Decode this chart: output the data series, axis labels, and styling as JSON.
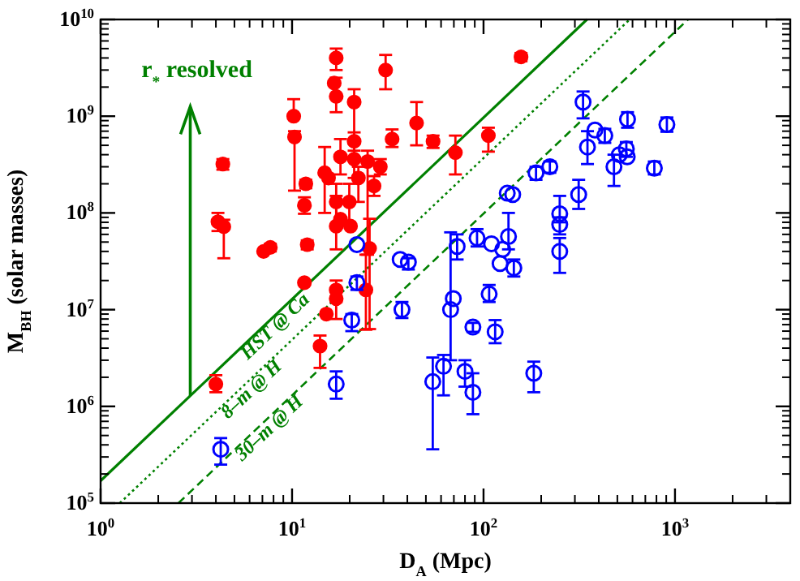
{
  "chart_data": {
    "type": "scatter",
    "xlabel": "D$_{A}$ (Mpc)",
    "ylabel": "M$_{BH}$ (solar masses)",
    "log": "xy",
    "xlim": [
      1,
      4000
    ],
    "ylim": [
      100000,
      10000000000
    ],
    "xticks": [
      {
        "value": 1,
        "label": "10$^{0}$"
      },
      {
        "value": 10,
        "label": "10$^{1}$"
      },
      {
        "value": 100,
        "label": "10$^{2}$"
      },
      {
        "value": 1000,
        "label": "10$^{3}$"
      }
    ],
    "yticks": [
      {
        "value": 100000,
        "label": "10$^{5}$"
      },
      {
        "value": 1000000,
        "label": "10$^{6}$"
      },
      {
        "value": 10000000,
        "label": "10$^{7}$"
      },
      {
        "value": 100000000,
        "label": "10$^{8}$"
      },
      {
        "value": 1000000000,
        "label": "10$^{9}$"
      },
      {
        "value": 10000000000,
        "label": "10$^{10}$"
      }
    ],
    "annotations": [
      "r$_{*}$ resolved"
    ],
    "series": [
      {
        "type": "line",
        "name": "HST @ Ca",
        "color": "#008000",
        "line_style": "solid",
        "x": [
          1,
          347
        ],
        "values": [
          170000,
          10000000000
        ]
      },
      {
        "type": "line",
        "name": "8–m @ H",
        "color": "#008000",
        "line_style": "dotted",
        "x": [
          1.26,
          580
        ],
        "values": [
          100000,
          10000000000
        ]
      },
      {
        "type": "line",
        "name": "30–m @ H",
        "color": "#008000",
        "line_style": "dashed",
        "x": [
          2.55,
          1170
        ],
        "values": [
          100000,
          10000000000
        ]
      },
      {
        "marker": "circle",
        "color": "#ff0000",
        "x": [
          4.35,
          4.1,
          4.4,
          7.1,
          7.7,
          12.0,
          10.2,
          10.3,
          11.8,
          11.6,
          17.0,
          16.6,
          17.0,
          30.8,
          21.1,
          14.8,
          15.5,
          17.9,
          21.1,
          21.1,
          24.8,
          22.2,
          28.9,
          26.8,
          17.0,
          19.9,
          17.9,
          17.0,
          20.2,
          33.3,
          44.7,
          54.5,
          71.3,
          106,
          157,
          25.4,
          11.6,
          17.0,
          17.0,
          15.1,
          24.3,
          14.0,
          4.0
        ],
        "values": [
          320000000,
          81000000,
          72000000,
          40000000,
          44000000,
          47000000,
          1000000000,
          610000000,
          200000000,
          120000000,
          4000000000,
          2200000000,
          1600000000,
          3000000000,
          1400000000,
          260000000,
          230000000,
          380000000,
          550000000,
          360000000,
          340000000,
          230000000,
          300000000,
          190000000,
          130000000,
          130000000,
          86000000,
          73000000,
          73000000,
          580000000,
          850000000,
          550000000,
          420000000,
          630000000,
          4100000000,
          43000000,
          19000000,
          16000000,
          13000000,
          9000000,
          16000000,
          4200000,
          1700000
        ],
        "errors": [
          [
            280000000,
            360000000
          ],
          [
            65000000,
            100000000
          ],
          [
            34000000,
            85000000
          ],
          null,
          [
            40000000,
            48000000
          ],
          [
            42000000,
            52000000
          ],
          [
            1000000000,
            1500000000
          ],
          [
            170000000,
            700000000
          ],
          [
            180000000,
            220000000
          ],
          [
            98000000,
            145000000
          ],
          [
            3000000000,
            5000000000
          ],
          null,
          [
            1100000000,
            2500000000
          ],
          [
            1900000000,
            4300000000
          ],
          [
            230000000,
            1900000000
          ],
          [
            100000000,
            480000000
          ],
          null,
          [
            250000000,
            580000000
          ],
          [
            440000000,
            680000000
          ],
          null,
          [
            37000000,
            440000000
          ],
          [
            130000000,
            300000000
          ],
          [
            250000000,
            360000000
          ],
          [
            150000000,
            240000000
          ],
          [
            70000000,
            200000000
          ],
          [
            80000000,
            200000000
          ],
          null,
          [
            42000000,
            150000000
          ],
          null,
          [
            480000000,
            730000000
          ],
          [
            500000000,
            1400000000
          ],
          [
            470000000,
            630000000
          ],
          [
            250000000,
            630000000
          ],
          [
            430000000,
            760000000
          ],
          [
            3700000000,
            4500000000
          ],
          [
            6300000,
            87000000
          ],
          null,
          [
            12000000,
            20000000
          ],
          [
            8000000,
            13000000
          ],
          null,
          [
            6200000,
            37000000
          ],
          [
            2500000,
            5400000
          ],
          [
            1400000,
            2100000
          ]
        ]
      },
      {
        "marker": "circle",
        "color": "#0000ff",
        "x": [
          21.8,
          36.7,
          40.5,
          331,
          382,
          430,
          349,
          480,
          314,
          188,
          222,
          133,
          142,
          250,
          250,
          250,
          92.5,
          110,
          135,
          126,
          122,
          144,
          72.8,
          565,
          907,
          512,
          557,
          563,
          780,
          107,
          115,
          183,
          88,
          80,
          88,
          21.8,
          20.5,
          37.5,
          69.5,
          67.3,
          54.3,
          61.8,
          17.0,
          4.24
        ],
        "values": [
          47000000,
          33000000,
          31000000,
          1400000000,
          720000000,
          630000000,
          480000000,
          300000000,
          155000000,
          260000000,
          300000000,
          160000000,
          155000000,
          98000000,
          76000000,
          40000000,
          55000000,
          48000000,
          57000000,
          42000000,
          30000000,
          27000000,
          45000000,
          930000000,
          820000000,
          400000000,
          460000000,
          380000000,
          290000000,
          14500000,
          5900000,
          2200000,
          6600000,
          2300000,
          1400000,
          19000000,
          7800000,
          10000000,
          13000000,
          10000000,
          1800000,
          2600000,
          1700000,
          360000
        ],
        "errors": [
          null,
          null,
          [
            26000000,
            34000000
          ],
          [
            950000000,
            1800000000
          ],
          null,
          [
            530000000,
            740000000
          ],
          [
            320000000,
            700000000
          ],
          [
            190000000,
            400000000
          ],
          [
            110000000,
            220000000
          ],
          [
            220000000,
            300000000
          ],
          [
            260000000,
            340000000
          ],
          null,
          null,
          [
            80000000,
            150000000
          ],
          [
            60000000,
            90000000
          ],
          [
            24000000,
            55000000
          ],
          [
            45000000,
            68000000
          ],
          null,
          [
            42000000,
            100000000
          ],
          null,
          null,
          [
            22000000,
            33000000
          ],
          [
            33000000,
            60000000
          ],
          [
            760000000,
            1100000000
          ],
          [
            690000000,
            970000000
          ],
          null,
          [
            380000000,
            540000000
          ],
          null,
          [
            250000000,
            340000000
          ],
          [
            12000000,
            18000000
          ],
          [
            4500000,
            7800000
          ],
          [
            1400000,
            2900000
          ],
          [
            5900000,
            7300000
          ],
          [
            1600000,
            3000000
          ],
          [
            830000,
            2200000
          ],
          [
            16000000,
            22000000
          ],
          [
            6000000,
            9000000
          ],
          [
            8200000,
            12000000
          ],
          null,
          [
            3000000,
            63000000
          ],
          [
            360000,
            3200000
          ],
          [
            1300000,
            3400000
          ],
          [
            1200000,
            2300000
          ],
          [
            250000,
            470000
          ]
        ]
      }
    ]
  }
}
